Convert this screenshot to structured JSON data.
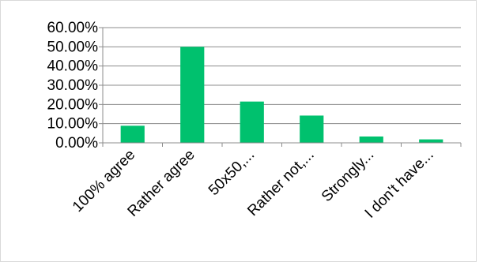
{
  "chart_data": {
    "type": "bar",
    "title": "",
    "xlabel": "",
    "ylabel": "",
    "categories": [
      "100% agree",
      "Rather agree",
      "50x50,...",
      "Rather not,...",
      "Strongly...",
      "I don't have..."
    ],
    "values": [
      8.9,
      50.0,
      21.5,
      14.2,
      3.3,
      1.8
    ],
    "value_unit": "%",
    "ylim": [
      0,
      60
    ],
    "yticks": [
      0,
      10,
      20,
      30,
      40,
      50,
      60
    ],
    "ytick_labels": [
      "0.00%",
      "10.00%",
      "20.00%",
      "30.00%",
      "40.00%",
      "50.00%",
      "60.00%"
    ],
    "grid": true,
    "legend": "none",
    "bar_color": "#00c16e",
    "grid_color": "#8c8c8c"
  }
}
